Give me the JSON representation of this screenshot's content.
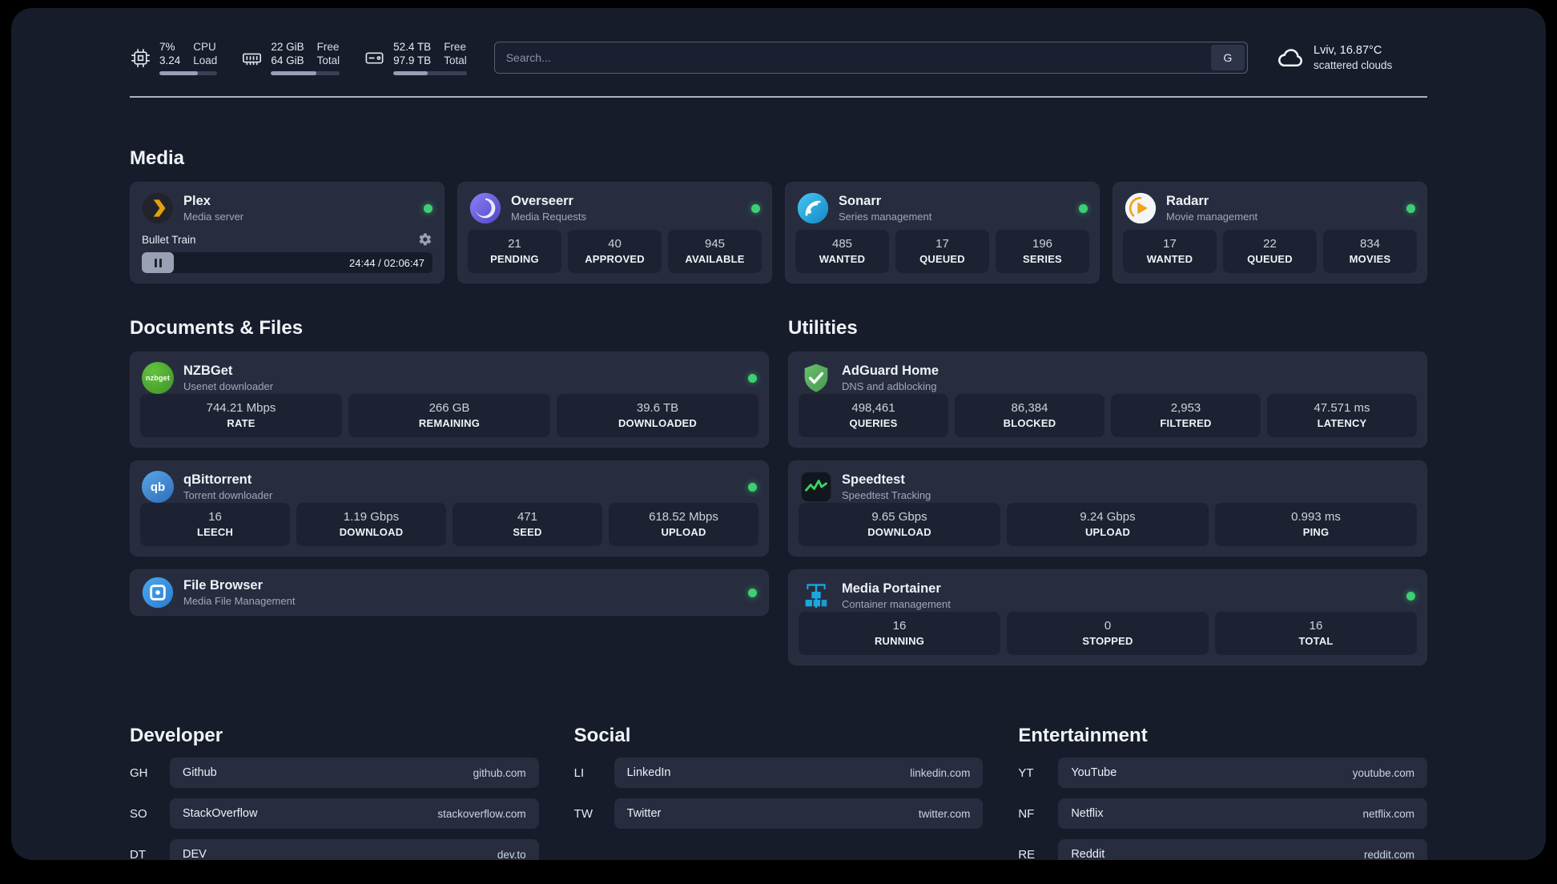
{
  "colors": {
    "page-bg": "#171c2b",
    "card-bg": "#272d3f",
    "stat-bg": "#1c2231",
    "accent-green": "#3ecf72"
  },
  "topbar": {
    "cpu": {
      "value_top": "7%",
      "value_bottom": "3.24",
      "label_top": "CPU",
      "label_bottom": "Load",
      "bar": "66%"
    },
    "ram": {
      "value_top": "22 GiB",
      "value_bottom": "64 GiB",
      "label_top": "Free",
      "label_bottom": "Total",
      "bar": "66%"
    },
    "disk": {
      "value_top": "52.4 TB",
      "value_bottom": "97.9 TB",
      "label_top": "Free",
      "label_bottom": "Total",
      "bar": "47%"
    },
    "search": {
      "placeholder": "Search...",
      "engine_button": "G"
    },
    "weather": {
      "location": "Lviv, 16.87°C",
      "condition": "scattered clouds"
    }
  },
  "media": {
    "title": "Media",
    "plex": {
      "name": "Plex",
      "subtitle": "Media server",
      "now_playing": "Bullet Train",
      "time": "24:44 / 02:06:47"
    },
    "overseerr": {
      "name": "Overseerr",
      "subtitle": "Media Requests",
      "stats": [
        {
          "value": "21",
          "label": "PENDING"
        },
        {
          "value": "40",
          "label": "APPROVED"
        },
        {
          "value": "945",
          "label": "AVAILABLE"
        }
      ]
    },
    "sonarr": {
      "name": "Sonarr",
      "subtitle": "Series management",
      "stats": [
        {
          "value": "485",
          "label": "WANTED"
        },
        {
          "value": "17",
          "label": "QUEUED"
        },
        {
          "value": "196",
          "label": "SERIES"
        }
      ]
    },
    "radarr": {
      "name": "Radarr",
      "subtitle": "Movie management",
      "stats": [
        {
          "value": "17",
          "label": "WANTED"
        },
        {
          "value": "22",
          "label": "QUEUED"
        },
        {
          "value": "834",
          "label": "MOVIES"
        }
      ]
    }
  },
  "documents": {
    "title": "Documents & Files",
    "nzbget": {
      "name": "NZBGet",
      "subtitle": "Usenet downloader",
      "icon_text": "nzbget",
      "stats": [
        {
          "value": "744.21 Mbps",
          "label": "RATE"
        },
        {
          "value": "266 GB",
          "label": "REMAINING"
        },
        {
          "value": "39.6 TB",
          "label": "DOWNLOADED"
        }
      ]
    },
    "qbittorrent": {
      "name": "qBittorrent",
      "subtitle": "Torrent downloader",
      "icon_text": "qb",
      "stats": [
        {
          "value": "16",
          "label": "LEECH"
        },
        {
          "value": "1.19 Gbps",
          "label": "DOWNLOAD"
        },
        {
          "value": "471",
          "label": "SEED"
        },
        {
          "value": "618.52 Mbps",
          "label": "UPLOAD"
        }
      ]
    },
    "filebrowser": {
      "name": "File Browser",
      "subtitle": "Media File Management"
    }
  },
  "utilities": {
    "title": "Utilities",
    "adguard": {
      "name": "AdGuard Home",
      "subtitle": "DNS and adblocking",
      "stats": [
        {
          "value": "498,461",
          "label": "QUERIES"
        },
        {
          "value": "86,384",
          "label": "BLOCKED"
        },
        {
          "value": "2,953",
          "label": "FILTERED"
        },
        {
          "value": "47.571 ms",
          "label": "LATENCY"
        }
      ]
    },
    "speedtest": {
      "name": "Speedtest",
      "subtitle": "Speedtest Tracking",
      "stats": [
        {
          "value": "9.65 Gbps",
          "label": "DOWNLOAD"
        },
        {
          "value": "9.24 Gbps",
          "label": "UPLOAD"
        },
        {
          "value": "0.993 ms",
          "label": "PING"
        }
      ]
    },
    "portainer": {
      "name": "Media Portainer",
      "subtitle": "Container management",
      "stats": [
        {
          "value": "16",
          "label": "RUNNING"
        },
        {
          "value": "0",
          "label": "STOPPED"
        },
        {
          "value": "16",
          "label": "TOTAL"
        }
      ]
    }
  },
  "bookmarks": {
    "developer": {
      "title": "Developer",
      "items": [
        {
          "abbr": "GH",
          "name": "Github",
          "url": "github.com"
        },
        {
          "abbr": "SO",
          "name": "StackOverflow",
          "url": "stackoverflow.com"
        },
        {
          "abbr": "DT",
          "name": "DEV",
          "url": "dev.to"
        }
      ]
    },
    "social": {
      "title": "Social",
      "items": [
        {
          "abbr": "LI",
          "name": "LinkedIn",
          "url": "linkedin.com"
        },
        {
          "abbr": "TW",
          "name": "Twitter",
          "url": "twitter.com"
        }
      ]
    },
    "entertainment": {
      "title": "Entertainment",
      "items": [
        {
          "abbr": "YT",
          "name": "YouTube",
          "url": "youtube.com"
        },
        {
          "abbr": "NF",
          "name": "Netflix",
          "url": "netflix.com"
        },
        {
          "abbr": "RE",
          "name": "Reddit",
          "url": "reddit.com"
        }
      ]
    }
  }
}
